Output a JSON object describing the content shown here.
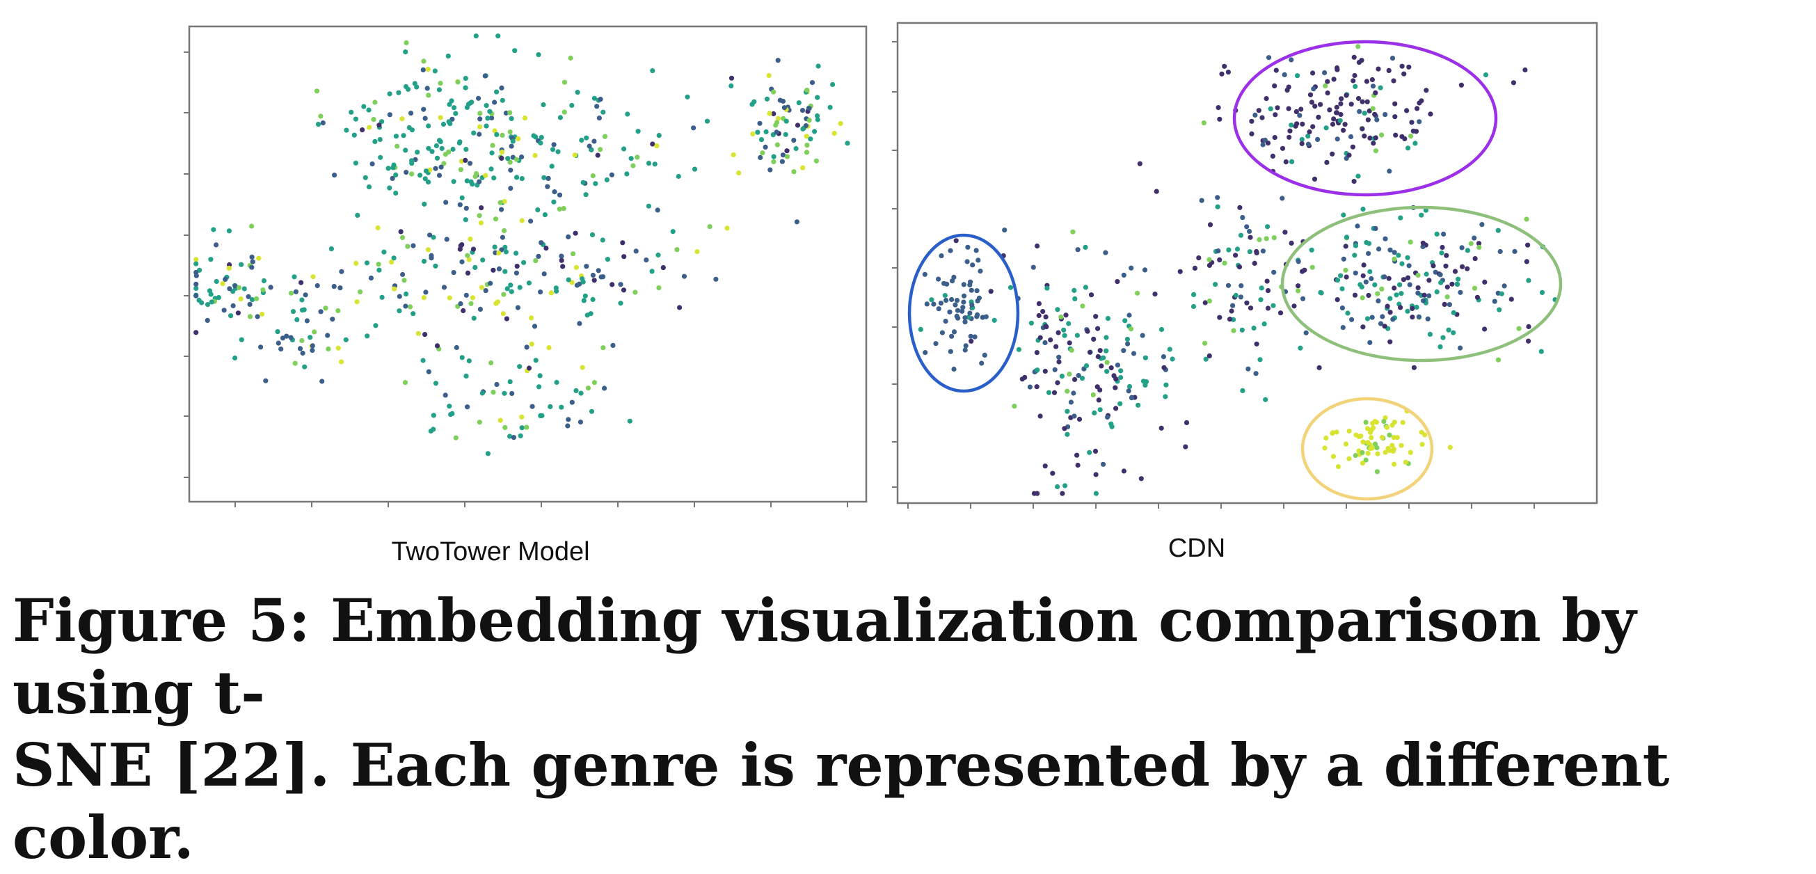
{
  "chart_data": [
    {
      "type": "scatter",
      "title": "TwoTower Model",
      "grid": false,
      "clusters": [
        {
          "cx": 0.06,
          "cy": 0.43,
          "sx": 0.035,
          "sy": 0.055,
          "n": 55,
          "mix": [
            0.1,
            0.25,
            0.45,
            0.12,
            0.08
          ]
        },
        {
          "cx": 0.17,
          "cy": 0.36,
          "sx": 0.03,
          "sy": 0.06,
          "n": 40,
          "mix": [
            0.05,
            0.45,
            0.3,
            0.1,
            0.1
          ]
        },
        {
          "cx": 0.37,
          "cy": 0.82,
          "sx": 0.09,
          "sy": 0.08,
          "n": 110,
          "mix": [
            0.02,
            0.2,
            0.6,
            0.13,
            0.05
          ]
        },
        {
          "cx": 0.49,
          "cy": 0.72,
          "sx": 0.13,
          "sy": 0.07,
          "n": 150,
          "mix": [
            0.05,
            0.25,
            0.45,
            0.15,
            0.1
          ]
        },
        {
          "cx": 0.46,
          "cy": 0.48,
          "sx": 0.15,
          "sy": 0.07,
          "n": 180,
          "mix": [
            0.12,
            0.3,
            0.3,
            0.13,
            0.15
          ]
        },
        {
          "cx": 0.48,
          "cy": 0.22,
          "sx": 0.07,
          "sy": 0.06,
          "n": 60,
          "mix": [
            0.02,
            0.2,
            0.5,
            0.2,
            0.08
          ]
        },
        {
          "cx": 0.88,
          "cy": 0.8,
          "sx": 0.04,
          "sy": 0.06,
          "n": 80,
          "mix": [
            0.05,
            0.3,
            0.4,
            0.15,
            0.1
          ]
        }
      ]
    },
    {
      "type": "scatter",
      "title": "CDN",
      "grid": false,
      "clusters": [
        {
          "cx": 0.09,
          "cy": 0.4,
          "sx": 0.028,
          "sy": 0.06,
          "n": 70,
          "mix": [
            0.05,
            0.9,
            0.05,
            0,
            0
          ]
        },
        {
          "cx": 0.28,
          "cy": 0.3,
          "sx": 0.06,
          "sy": 0.12,
          "n": 170,
          "mix": [
            0.45,
            0.2,
            0.3,
            0.05,
            0
          ]
        },
        {
          "cx": 0.5,
          "cy": 0.46,
          "sx": 0.04,
          "sy": 0.1,
          "n": 80,
          "mix": [
            0.35,
            0.25,
            0.3,
            0.1,
            0
          ]
        },
        {
          "cx": 0.62,
          "cy": 0.81,
          "sx": 0.08,
          "sy": 0.06,
          "n": 160,
          "mix": [
            0.7,
            0.12,
            0.1,
            0.08,
            0
          ]
        },
        {
          "cx": 0.74,
          "cy": 0.46,
          "sx": 0.09,
          "sy": 0.07,
          "n": 190,
          "mix": [
            0.25,
            0.25,
            0.4,
            0.1,
            0
          ]
        },
        {
          "cx": 0.68,
          "cy": 0.13,
          "sx": 0.035,
          "sy": 0.025,
          "n": 70,
          "mix": [
            0,
            0,
            0,
            0.2,
            0.8
          ]
        }
      ],
      "highlight_ellipses": [
        {
          "cx": 0.62,
          "cy": 0.8,
          "rx": 0.19,
          "ry": 0.16,
          "color": "#9b30e8"
        },
        {
          "cx": 0.93,
          "cy": 0.46,
          "rx": 0.08,
          "ry": 0.16,
          "color": "#2a5fc9",
          "ref": "left"
        },
        {
          "cx": 0.76,
          "cy": 0.46,
          "rx": 0.2,
          "ry": 0.16,
          "color": "#8ec07c"
        },
        {
          "cx": 0.68,
          "cy": 0.11,
          "rx": 0.095,
          "ry": 0.1,
          "color": "#f2d37a"
        }
      ]
    }
  ],
  "colors": {
    "genres": [
      "#3f2f6b",
      "#3b5f8a",
      "#23a088",
      "#7ed05a",
      "#d9e432"
    ],
    "frame": "#777777"
  },
  "caption": {
    "line1": "Figure 5: Embedding visualization comparison by using t-",
    "line2": "SNE [22]. Each genre is represented by a different color."
  }
}
